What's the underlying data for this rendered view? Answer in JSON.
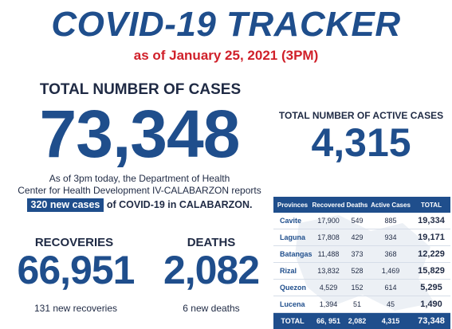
{
  "header": {
    "title": "COVID-19 TRACKER",
    "as_of": "as of January 25, 2021 (3PM)"
  },
  "total_cases": {
    "label": "TOTAL NUMBER OF CASES",
    "value": "73,348"
  },
  "active_cases": {
    "label": "TOTAL NUMBER OF ACTIVE CASES",
    "value": "4,315"
  },
  "report": {
    "line1": "As of 3pm today, the Department of Health",
    "line2": "Center for Health Development IV-CALABARZON reports",
    "new_cases": "320 new cases",
    "line3_rest": " of COVID-19 in CALABARZON."
  },
  "recoveries": {
    "label": "RECOVERIES",
    "value": "66,951",
    "sub": "131 new recoveries"
  },
  "deaths": {
    "label": "DEATHS",
    "value": "2,082",
    "sub": "6 new deaths"
  },
  "table": {
    "headers": [
      "Provinces",
      "Recovered",
      "Deaths",
      "Active Cases",
      "TOTAL"
    ],
    "rows": [
      [
        "Cavite",
        "17,900",
        "549",
        "885",
        "19,334"
      ],
      [
        "Laguna",
        "17,808",
        "429",
        "934",
        "19,171"
      ],
      [
        "Batangas",
        "11,488",
        "373",
        "368",
        "12,229"
      ],
      [
        "Rizal",
        "13,832",
        "528",
        "1,469",
        "15,829"
      ],
      [
        "Quezon",
        "4,529",
        "152",
        "614",
        "5,295"
      ],
      [
        "Lucena",
        "1,394",
        "51",
        "45",
        "1,490"
      ]
    ],
    "total": [
      "TOTAL",
      "66, 951",
      "2,082",
      "4,315",
      "73,348"
    ]
  },
  "colors": {
    "primary_blue": "#1f4e8c",
    "date_red": "#d0202a",
    "text_dark": "#1f2a44"
  }
}
